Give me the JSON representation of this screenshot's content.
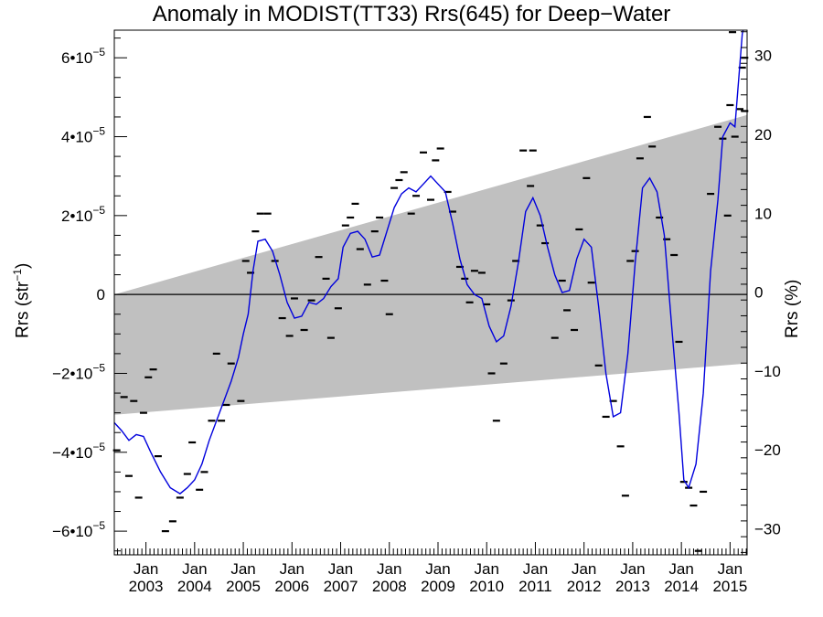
{
  "chart_data": {
    "type": "line",
    "title": "Anomaly in MODIST(TT33) Rrs(645) for Deep−Water",
    "ylabel_left_main": "Rrs (str",
    "ylabel_left_sup": "−1",
    "ylabel_left_end": ")",
    "ylabel_right": "Rrs (%)",
    "x_range": [
      2002.35,
      2015.35
    ],
    "y_left_range": [
      -6.6e-05,
      6.7e-05
    ],
    "y_right_range": [
      -33.3,
      33.2
    ],
    "x_ticks_top": [
      "Jan",
      "Jan",
      "Jan",
      "Jan",
      "Jan",
      "Jan",
      "Jan",
      "Jan",
      "Jan",
      "Jan",
      "Jan",
      "Jan",
      "Jan"
    ],
    "x_ticks_bottom": [
      "2003",
      "2004",
      "2005",
      "2006",
      "2007",
      "2008",
      "2009",
      "2010",
      "2011",
      "2012",
      "2013",
      "2014",
      "2015"
    ],
    "x_tick_values": [
      2003,
      2004,
      2005,
      2006,
      2007,
      2008,
      2009,
      2010,
      2011,
      2012,
      2013,
      2014,
      2015
    ],
    "y_left_ticks": [
      {
        "value": 6e-05,
        "mant": "6•10",
        "exp": "−5"
      },
      {
        "value": 4e-05,
        "mant": "4•10",
        "exp": "−5"
      },
      {
        "value": 2e-05,
        "mant": "2•10",
        "exp": "−5"
      },
      {
        "value": 0,
        "mant": "0",
        "exp": ""
      },
      {
        "value": -2e-05,
        "mant": "−2•10",
        "exp": "−5"
      },
      {
        "value": -4e-05,
        "mant": "−4•10",
        "exp": "−5"
      },
      {
        "value": -6e-05,
        "mant": "−6•10",
        "exp": "−5"
      }
    ],
    "y_right_ticks": [
      30,
      20,
      10,
      0,
      -10,
      -20,
      -30
    ],
    "y_right_labels": [
      "30",
      "20",
      "10",
      "0",
      "−10",
      "−20",
      "−30"
    ],
    "zero_line": 0,
    "uncertainty_band": {
      "upper": [
        [
          2002.35,
          0.0
        ],
        [
          2015.35,
          4.55e-05
        ]
      ],
      "lower": [
        [
          2002.35,
          -3.05e-05
        ],
        [
          2015.35,
          -1.75e-05
        ]
      ],
      "color": "#c0c0c0"
    },
    "series": [
      {
        "color": "#0000dd",
        "points": [
          [
            2002.35,
            -3.25e-05
          ],
          [
            2002.5,
            -3.45e-05
          ],
          [
            2002.65,
            -3.7e-05
          ],
          [
            2002.8,
            -3.55e-05
          ],
          [
            2002.95,
            -3.6e-05
          ],
          [
            2003.1,
            -4e-05
          ],
          [
            2003.3,
            -4.5e-05
          ],
          [
            2003.5,
            -4.9e-05
          ],
          [
            2003.7,
            -5.05e-05
          ],
          [
            2003.85,
            -4.9e-05
          ],
          [
            2004.0,
            -4.7e-05
          ],
          [
            2004.15,
            -4.3e-05
          ],
          [
            2004.3,
            -3.7e-05
          ],
          [
            2004.45,
            -3.2e-05
          ],
          [
            2004.6,
            -2.7e-05
          ],
          [
            2004.75,
            -2.2e-05
          ],
          [
            2004.9,
            -1.6e-05
          ],
          [
            2005.0,
            -1e-05
          ],
          [
            2005.1,
            -5e-06
          ],
          [
            2005.2,
            6e-06
          ],
          [
            2005.3,
            1.35e-05
          ],
          [
            2005.45,
            1.4e-05
          ],
          [
            2005.6,
            1.1e-05
          ],
          [
            2005.75,
            5e-06
          ],
          [
            2005.9,
            -2e-06
          ],
          [
            2006.05,
            -6e-06
          ],
          [
            2006.2,
            -5.5e-06
          ],
          [
            2006.35,
            -2e-06
          ],
          [
            2006.5,
            -2.5e-06
          ],
          [
            2006.65,
            -1e-06
          ],
          [
            2006.8,
            2e-06
          ],
          [
            2006.95,
            4e-06
          ],
          [
            2007.05,
            1.2e-05
          ],
          [
            2007.2,
            1.55e-05
          ],
          [
            2007.35,
            1.6e-05
          ],
          [
            2007.5,
            1.4e-05
          ],
          [
            2007.65,
            9.5e-06
          ],
          [
            2007.8,
            1e-05
          ],
          [
            2007.95,
            1.6e-05
          ],
          [
            2008.1,
            2.2e-05
          ],
          [
            2008.25,
            2.55e-05
          ],
          [
            2008.4,
            2.7e-05
          ],
          [
            2008.55,
            2.6e-05
          ],
          [
            2008.7,
            2.8e-05
          ],
          [
            2008.85,
            3e-05
          ],
          [
            2009.0,
            2.8e-05
          ],
          [
            2009.15,
            2.6e-05
          ],
          [
            2009.3,
            1.8e-05
          ],
          [
            2009.45,
            9e-06
          ],
          [
            2009.6,
            2.5e-06
          ],
          [
            2009.75,
            0.0
          ],
          [
            2009.9,
            -1e-06
          ],
          [
            2010.05,
            -8e-06
          ],
          [
            2010.2,
            -1.2e-05
          ],
          [
            2010.35,
            -1.05e-05
          ],
          [
            2010.5,
            -3e-06
          ],
          [
            2010.65,
            8e-06
          ],
          [
            2010.8,
            2.1e-05
          ],
          [
            2010.95,
            2.45e-05
          ],
          [
            2011.1,
            2e-05
          ],
          [
            2011.25,
            1.2e-05
          ],
          [
            2011.4,
            5e-06
          ],
          [
            2011.55,
            5e-07
          ],
          [
            2011.7,
            1e-06
          ],
          [
            2011.85,
            9e-06
          ],
          [
            2012.0,
            1.4e-05
          ],
          [
            2012.15,
            1.2e-05
          ],
          [
            2012.3,
            -3e-06
          ],
          [
            2012.45,
            -2e-05
          ],
          [
            2012.6,
            -3.1e-05
          ],
          [
            2012.75,
            -3e-05
          ],
          [
            2012.9,
            -1.5e-05
          ],
          [
            2013.05,
            8e-06
          ],
          [
            2013.2,
            2.7e-05
          ],
          [
            2013.35,
            2.95e-05
          ],
          [
            2013.5,
            2.6e-05
          ],
          [
            2013.65,
            1.5e-05
          ],
          [
            2013.8,
            -8e-06
          ],
          [
            2013.95,
            -3e-05
          ],
          [
            2014.05,
            -4.7e-05
          ],
          [
            2014.15,
            -4.9e-05
          ],
          [
            2014.3,
            -4.3e-05
          ],
          [
            2014.45,
            -2.5e-05
          ],
          [
            2014.6,
            6e-06
          ],
          [
            2014.75,
            2.4e-05
          ],
          [
            2014.85,
            4e-05
          ],
          [
            2015.0,
            4.35e-05
          ],
          [
            2015.1,
            4.25e-05
          ],
          [
            2015.25,
            6.6e-05
          ],
          [
            2015.35,
            7.2e-05
          ]
        ]
      }
    ],
    "markers": [
      [
        2002.4,
        -3.95e-05
      ],
      [
        2002.55,
        -2.6e-05
      ],
      [
        2002.65,
        -4.6e-05
      ],
      [
        2002.75,
        -2.7e-05
      ],
      [
        2002.85,
        -5.15e-05
      ],
      [
        2002.95,
        -3e-05
      ],
      [
        2003.05,
        -2.1e-05
      ],
      [
        2003.15,
        -1.9e-05
      ],
      [
        2003.25,
        -4.1e-05
      ],
      [
        2003.4,
        -6e-05
      ],
      [
        2003.55,
        -5.75e-05
      ],
      [
        2003.7,
        -5.15e-05
      ],
      [
        2003.85,
        -4.55e-05
      ],
      [
        2003.95,
        -3.75e-05
      ],
      [
        2004.1,
        -4.95e-05
      ],
      [
        2004.2,
        -4.5e-05
      ],
      [
        2004.35,
        -3.2e-05
      ],
      [
        2004.45,
        -1.5e-05
      ],
      [
        2004.55,
        -3.2e-05
      ],
      [
        2004.65,
        -2.8e-05
      ],
      [
        2004.75,
        -1.75e-05
      ],
      [
        2004.95,
        -2.7e-05
      ],
      [
        2005.05,
        8.5e-06
      ],
      [
        2005.15,
        5.5e-06
      ],
      [
        2005.25,
        1.6e-05
      ],
      [
        2005.35,
        2.05e-05
      ],
      [
        2005.5,
        2.05e-05
      ],
      [
        2005.65,
        8.5e-06
      ],
      [
        2005.8,
        -6e-06
      ],
      [
        2005.95,
        -1.05e-05
      ],
      [
        2006.05,
        -1e-06
      ],
      [
        2006.25,
        -9e-06
      ],
      [
        2006.4,
        -1.5e-06
      ],
      [
        2006.55,
        9.5e-06
      ],
      [
        2006.7,
        4e-06
      ],
      [
        2006.8,
        -1.1e-05
      ],
      [
        2006.95,
        -3.5e-06
      ],
      [
        2007.1,
        1.75e-05
      ],
      [
        2007.2,
        1.95e-05
      ],
      [
        2007.3,
        2.3e-05
      ],
      [
        2007.4,
        1.15e-05
      ],
      [
        2007.55,
        2.5e-06
      ],
      [
        2007.7,
        1.6e-05
      ],
      [
        2007.8,
        1.95e-05
      ],
      [
        2007.9,
        3.5e-06
      ],
      [
        2008.0,
        -5e-06
      ],
      [
        2008.1,
        2.7e-05
      ],
      [
        2008.2,
        2.9e-05
      ],
      [
        2008.3,
        3.1e-05
      ],
      [
        2008.45,
        2.05e-05
      ],
      [
        2008.55,
        2.5e-05
      ],
      [
        2008.7,
        3.6e-05
      ],
      [
        2008.85,
        2.4e-05
      ],
      [
        2008.95,
        3.4e-05
      ],
      [
        2009.05,
        3.7e-05
      ],
      [
        2009.2,
        2.6e-05
      ],
      [
        2009.3,
        2.1e-05
      ],
      [
        2009.45,
        7e-06
      ],
      [
        2009.55,
        4e-06
      ],
      [
        2009.65,
        -2e-06
      ],
      [
        2009.75,
        6e-06
      ],
      [
        2009.9,
        5.5e-06
      ],
      [
        2010.0,
        -2.5e-06
      ],
      [
        2010.1,
        -2e-05
      ],
      [
        2010.2,
        -3.2e-05
      ],
      [
        2010.35,
        -1.75e-05
      ],
      [
        2010.5,
        -1.5e-06
      ],
      [
        2010.6,
        8.5e-06
      ],
      [
        2010.75,
        3.65e-05
      ],
      [
        2010.9,
        2.75e-05
      ],
      [
        2010.95,
        3.65e-05
      ],
      [
        2011.1,
        1.75e-05
      ],
      [
        2011.2,
        1.3e-05
      ],
      [
        2011.4,
        -1.1e-05
      ],
      [
        2011.55,
        3.5e-06
      ],
      [
        2011.65,
        -4e-06
      ],
      [
        2011.8,
        -9e-06
      ],
      [
        2011.9,
        1.65e-05
      ],
      [
        2012.05,
        2.95e-05
      ],
      [
        2012.15,
        3e-06
      ],
      [
        2012.3,
        -1.8e-05
      ],
      [
        2012.45,
        -3.1e-05
      ],
      [
        2012.6,
        -2.7e-05
      ],
      [
        2012.75,
        -3.85e-05
      ],
      [
        2012.85,
        -5.1e-05
      ],
      [
        2012.95,
        8.5e-06
      ],
      [
        2013.05,
        1.1e-05
      ],
      [
        2013.15,
        3.45e-05
      ],
      [
        2013.3,
        4.5e-05
      ],
      [
        2013.4,
        3.75e-05
      ],
      [
        2013.55,
        1.95e-05
      ],
      [
        2013.7,
        1.4e-05
      ],
      [
        2013.85,
        1e-05
      ],
      [
        2013.95,
        -1.2e-05
      ],
      [
        2014.05,
        -4.75e-05
      ],
      [
        2014.15,
        -4.9e-05
      ],
      [
        2014.25,
        -5.35e-05
      ],
      [
        2014.35,
        -6.5e-05
      ],
      [
        2014.45,
        -5e-05
      ],
      [
        2014.6,
        2.55e-05
      ],
      [
        2014.75,
        4.25e-05
      ],
      [
        2014.85,
        3.95e-05
      ],
      [
        2014.95,
        2e-05
      ],
      [
        2015.0,
        4.8e-05
      ],
      [
        2015.1,
        4e-05
      ],
      [
        2015.2,
        4.7e-05
      ],
      [
        2015.3,
        4.65e-05
      ],
      [
        2015.05,
        6.65e-05
      ],
      [
        2015.3,
        6e-05
      ],
      [
        2015.25,
        5.75e-05
      ]
    ]
  }
}
